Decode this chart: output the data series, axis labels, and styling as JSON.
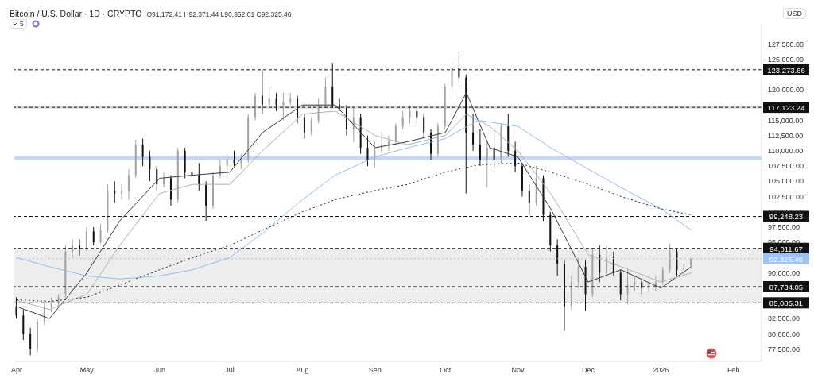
{
  "chart_data": {
    "type": "candlestick",
    "title": "Bitcoin / U.S. Dollar · 1D · CRYPTO",
    "subtitle": "O91,172.41 H92,371.44 L90,952.01 C92,325.46",
    "ylabel": "USD",
    "annotations": [
      "5"
    ],
    "xlim": [
      "2025-03-31",
      "2026-02-13"
    ],
    "xticks": [
      {
        "value": "2025-04-01",
        "label": "Apr"
      },
      {
        "value": "2025-05-01",
        "label": "May"
      },
      {
        "value": "2025-06-01",
        "label": "Jun"
      },
      {
        "value": "2025-07-01",
        "label": "Jul"
      },
      {
        "value": "2025-08-01",
        "label": "Aug"
      },
      {
        "value": "2025-09-01",
        "label": "Sep"
      },
      {
        "value": "2025-10-01",
        "label": "Oct"
      },
      {
        "value": "2025-11-01",
        "label": "Nov"
      },
      {
        "value": "2025-12-01",
        "label": "Dec"
      },
      {
        "value": "2026-01-01",
        "label": "2026"
      },
      {
        "value": "2026-02-01",
        "label": "Feb"
      }
    ],
    "ylim": [
      75500,
      130800
    ],
    "yticks": [
      {
        "value": 77500,
        "label": "77,500.00"
      },
      {
        "value": 80000,
        "label": "80,000.00"
      },
      {
        "value": 82500,
        "label": "82,500.00"
      },
      {
        "value": 90000,
        "label": "90,000.00"
      },
      {
        "value": 95000,
        "label": "95,000.00"
      },
      {
        "value": 97500,
        "label": "97,500.00"
      },
      {
        "value": 100000,
        "label": "100,000.00"
      },
      {
        "value": 102500,
        "label": "102,500.00"
      },
      {
        "value": 105000,
        "label": "105,000.00"
      },
      {
        "value": 107500,
        "label": "107,500.00"
      },
      {
        "value": 110000,
        "label": "110,000.00"
      },
      {
        "value": 112500,
        "label": "112,500.00"
      },
      {
        "value": 115000,
        "label": "115,000.00"
      },
      {
        "value": 120000,
        "label": "120,000.00"
      },
      {
        "value": 125000,
        "label": "125,000.00"
      },
      {
        "value": 127500,
        "label": "127,500.00"
      }
    ],
    "grid": false,
    "legend": false,
    "series": [
      {
        "colors": [
          "#131313",
          "#131313",
          "#131313",
          "#a3a3a3",
          "#a3a3a3",
          "#a3a3a3",
          "#a3a3a3",
          "#a3a3a3",
          "#a3a3a3",
          "#131313",
          "#a3a3a3",
          "#131313",
          "#a3a3a3",
          "#a3a3a3",
          "#131313",
          "#a3a3a3",
          "#a3a3a3",
          "#a3a3a3",
          "#131313",
          "#131313",
          "#131313",
          "#a3a3a3",
          "#131313",
          "#a3a3a3",
          "#131313",
          "#131313",
          "#131313",
          "#131313",
          "#a3a3a3",
          "#a3a3a3",
          "#a3a3a3",
          "#131313",
          "#a3a3a3",
          "#a3a3a3",
          "#a3a3a3",
          "#131313",
          "#a3a3a3",
          "#131313",
          "#a3a3a3",
          "#a3a3a3",
          "#131313",
          "#131313",
          "#a3a3a3",
          "#a3a3a3",
          "#a3a3a3",
          "#131313",
          "#131313",
          "#131313",
          "#a3a3a3",
          "#131313",
          "#131313",
          "#a3a3a3",
          "#a3a3a3",
          "#a3a3a3",
          "#a3a3a3",
          "#a3a3a3",
          "#a3a3a3",
          "#131313",
          "#131313",
          "#131313",
          "#a3a3a3",
          "#a3a3a3",
          "#a3a3a3",
          "#131313",
          "#131313",
          "#131313",
          "#131313",
          "#a3a3a3",
          "#131313",
          "#a3a3a3",
          "#131313",
          "#131313",
          "#131313",
          "#131313",
          "#a3a3a3",
          "#131313",
          "#131313",
          "#131313",
          "#131313",
          "#a3a3a3",
          "#a3a3a3",
          "#131313",
          "#a3a3a3",
          "#131313",
          "#a3a3a3",
          "#131313",
          "#131313",
          "#a3a3a3",
          "#a3a3a3",
          "#131313",
          "#a3a3a3",
          "#a3a3a3",
          "#a3a3a3",
          "#a3a3a3",
          "#131313",
          "#a3a3a3",
          "#a3a3a3"
        ],
        "x": [
          "2025-04-01",
          "2025-04-04",
          "2025-04-07",
          "2025-04-10",
          "2025-04-13",
          "2025-04-16",
          "2025-04-19",
          "2025-04-22",
          "2025-04-25",
          "2025-04-28",
          "2025-05-01",
          "2025-05-04",
          "2025-05-07",
          "2025-05-10",
          "2025-05-13",
          "2025-05-16",
          "2025-05-19",
          "2025-05-22",
          "2025-05-25",
          "2025-05-28",
          "2025-05-31",
          "2025-06-03",
          "2025-06-06",
          "2025-06-09",
          "2025-06-12",
          "2025-06-15",
          "2025-06-18",
          "2025-06-21",
          "2025-06-24",
          "2025-06-27",
          "2025-06-30",
          "2025-07-03",
          "2025-07-06",
          "2025-07-09",
          "2025-07-12",
          "2025-07-15",
          "2025-07-18",
          "2025-07-21",
          "2025-07-24",
          "2025-07-27",
          "2025-07-30",
          "2025-08-02",
          "2025-08-05",
          "2025-08-08",
          "2025-08-11",
          "2025-08-14",
          "2025-08-17",
          "2025-08-20",
          "2025-08-23",
          "2025-08-26",
          "2025-08-29",
          "2025-09-01",
          "2025-09-04",
          "2025-09-07",
          "2025-09-10",
          "2025-09-13",
          "2025-09-16",
          "2025-09-19",
          "2025-09-22",
          "2025-09-25",
          "2025-09-28",
          "2025-10-01",
          "2025-10-04",
          "2025-10-07",
          "2025-10-10",
          "2025-10-13",
          "2025-10-16",
          "2025-10-19",
          "2025-10-22",
          "2025-10-25",
          "2025-10-28",
          "2025-10-31",
          "2025-11-03",
          "2025-11-06",
          "2025-11-09",
          "2025-11-12",
          "2025-11-15",
          "2025-11-18",
          "2025-11-21",
          "2025-11-24",
          "2025-11-27",
          "2025-11-30",
          "2025-12-03",
          "2025-12-06",
          "2025-12-09",
          "2025-12-12",
          "2025-12-15",
          "2025-12-18",
          "2025-12-21",
          "2025-12-24",
          "2025-12-27",
          "2025-12-30",
          "2026-01-02",
          "2026-01-05",
          "2026-01-08",
          "2026-01-11",
          "2026-01-14"
        ],
        "ohlc": [
          [
            84500,
            86000,
            82500,
            83000
          ],
          [
            83000,
            84000,
            79000,
            80000
          ],
          [
            80000,
            81000,
            76500,
            77500
          ],
          [
            77500,
            82500,
            77000,
            82000
          ],
          [
            82000,
            85500,
            81500,
            84500
          ],
          [
            84500,
            86000,
            83500,
            85000
          ],
          [
            85000,
            86500,
            84500,
            86000
          ],
          [
            86500,
            94500,
            86000,
            93500
          ],
          [
            93500,
            95500,
            92500,
            94500
          ],
          [
            94500,
            95500,
            92800,
            94000
          ],
          [
            94000,
            97500,
            93500,
            96800
          ],
          [
            96800,
            97500,
            94500,
            95000
          ],
          [
            95000,
            98000,
            94800,
            97000
          ],
          [
            97000,
            104500,
            96500,
            103500
          ],
          [
            103500,
            105000,
            101500,
            103000
          ],
          [
            103000,
            104500,
            102000,
            103500
          ],
          [
            103500,
            107000,
            102000,
            106000
          ],
          [
            106000,
            111800,
            105500,
            111000
          ],
          [
            111000,
            112000,
            107500,
            109000
          ],
          [
            109000,
            110000,
            105000,
            107000
          ],
          [
            107000,
            107500,
            103500,
            104500
          ],
          [
            104500,
            106500,
            104000,
            105500
          ],
          [
            105500,
            106000,
            101000,
            102000
          ],
          [
            102000,
            110500,
            101500,
            110000
          ],
          [
            110000,
            110500,
            105500,
            106500
          ],
          [
            106500,
            108500,
            104500,
            106000
          ],
          [
            106000,
            108000,
            103500,
            104500
          ],
          [
            104500,
            105000,
            98500,
            101000
          ],
          [
            101000,
            106500,
            100500,
            106000
          ],
          [
            106000,
            108500,
            105500,
            107500
          ],
          [
            107500,
            109500,
            105500,
            108500
          ],
          [
            108500,
            110000,
            107500,
            108000
          ],
          [
            108000,
            109500,
            107000,
            108500
          ],
          [
            108500,
            116000,
            108000,
            115500
          ],
          [
            115500,
            119500,
            115000,
            119000
          ],
          [
            119000,
            123200,
            116000,
            117500
          ],
          [
            117500,
            120500,
            117000,
            118500
          ],
          [
            118500,
            119500,
            116500,
            117500
          ],
          [
            117500,
            119500,
            115000,
            118000
          ],
          [
            118000,
            119500,
            117500,
            118500
          ],
          [
            118500,
            119000,
            114500,
            115500
          ],
          [
            115500,
            116000,
            112000,
            113000
          ],
          [
            113000,
            115500,
            112500,
            115000
          ],
          [
            115000,
            118500,
            114500,
            117500
          ],
          [
            117500,
            122000,
            117000,
            120500
          ],
          [
            120500,
            124400,
            117000,
            117500
          ],
          [
            117500,
            118500,
            116500,
            117000
          ],
          [
            117000,
            117500,
            112500,
            113500
          ],
          [
            113500,
            117000,
            111500,
            115500
          ],
          [
            115500,
            116000,
            109500,
            110500
          ],
          [
            110500,
            112500,
            107500,
            108500
          ],
          [
            108500,
            111500,
            107200,
            110000
          ],
          [
            110000,
            113000,
            109500,
            111000
          ],
          [
            111000,
            112500,
            110000,
            111500
          ],
          [
            111500,
            114500,
            111000,
            114000
          ],
          [
            114000,
            116500,
            113500,
            115500
          ],
          [
            115500,
            117500,
            114500,
            116500
          ],
          [
            116500,
            117000,
            114500,
            115500
          ],
          [
            115500,
            116000,
            112000,
            113000
          ],
          [
            113000,
            113500,
            108500,
            109500
          ],
          [
            109500,
            114500,
            109000,
            114000
          ],
          [
            114000,
            121000,
            113500,
            120500
          ],
          [
            120500,
            124500,
            120000,
            123500
          ],
          [
            123500,
            126200,
            121000,
            122000
          ],
          [
            122000,
            122500,
            103000,
            113000
          ],
          [
            113000,
            116000,
            110000,
            111000
          ],
          [
            111000,
            113500,
            107500,
            108500
          ],
          [
            108500,
            111500,
            104000,
            110500
          ],
          [
            110500,
            113000,
            107000,
            108500
          ],
          [
            108500,
            114500,
            108000,
            114000
          ],
          [
            114000,
            116000,
            109000,
            110000
          ],
          [
            110000,
            111500,
            106500,
            107500
          ],
          [
            107500,
            108000,
            102500,
            103500
          ],
          [
            103500,
            104500,
            99500,
            101500
          ],
          [
            101500,
            107500,
            101000,
            105500
          ],
          [
            105500,
            106000,
            98500,
            99500
          ],
          [
            99500,
            100000,
            93500,
            94500
          ],
          [
            94500,
            95500,
            89500,
            91500
          ],
          [
            91500,
            92000,
            80500,
            84500
          ],
          [
            84500,
            89500,
            84000,
            88500
          ],
          [
            88500,
            92500,
            87500,
            91000
          ],
          [
            91000,
            92000,
            83800,
            86500
          ],
          [
            86500,
            94000,
            86000,
            93000
          ],
          [
            93000,
            94500,
            88500,
            90000
          ],
          [
            90000,
            94500,
            89500,
            92500
          ],
          [
            92500,
            93500,
            89500,
            90000
          ],
          [
            90000,
            90500,
            85500,
            86500
          ],
          [
            86500,
            90500,
            84800,
            88000
          ],
          [
            88000,
            89500,
            87000,
            88500
          ],
          [
            88500,
            89000,
            86500,
            87500
          ],
          [
            87500,
            88500,
            86800,
            87800
          ],
          [
            87800,
            89500,
            87000,
            88500
          ],
          [
            88500,
            91000,
            88000,
            90500
          ],
          [
            90500,
            94800,
            90000,
            93500
          ],
          [
            93500,
            94000,
            89500,
            90500
          ],
          [
            90500,
            91500,
            89700,
            90800
          ],
          [
            91172.41,
            92371.44,
            90952.01,
            92325.46
          ]
        ]
      },
      {
        "type": "line",
        "color": "#3a3a3a",
        "line_style": "solid",
        "x": [
          "2025-04-01",
          "2025-04-15",
          "2025-05-01",
          "2025-05-15",
          "2025-06-01",
          "2025-06-15",
          "2025-07-01",
          "2025-07-15",
          "2025-08-01",
          "2025-08-15",
          "2025-09-01",
          "2025-09-15",
          "2025-10-01",
          "2025-10-10",
          "2025-10-20",
          "2025-11-01",
          "2025-11-15",
          "2025-12-01",
          "2025-12-15",
          "2026-01-01",
          "2026-01-14"
        ],
        "values": [
          84500,
          82500,
          90000,
          98500,
          105500,
          106000,
          106500,
          113000,
          117500,
          117500,
          110500,
          111500,
          113000,
          119500,
          110500,
          109000,
          100500,
          88500,
          90500,
          87500,
          91000
        ]
      },
      {
        "type": "line",
        "color": "#b0b0b0",
        "line_style": "solid",
        "x": [
          "2025-04-01",
          "2025-04-15",
          "2025-05-01",
          "2025-05-15",
          "2025-06-01",
          "2025-06-15",
          "2025-07-01",
          "2025-07-15",
          "2025-08-01",
          "2025-08-15",
          "2025-09-01",
          "2025-09-15",
          "2025-10-01",
          "2025-10-10",
          "2025-10-20",
          "2025-11-01",
          "2025-11-15",
          "2025-12-01",
          "2025-12-15",
          "2026-01-01",
          "2026-01-14"
        ],
        "values": [
          85500,
          84000,
          86500,
          94500,
          103000,
          104500,
          104500,
          110000,
          116000,
          116500,
          112500,
          111000,
          112500,
          116000,
          114000,
          110000,
          103000,
          93000,
          91000,
          88500,
          90000
        ]
      },
      {
        "type": "line",
        "color": "#93bdf5",
        "line_style": "solid",
        "x": [
          "2025-04-01",
          "2025-04-15",
          "2025-05-01",
          "2025-05-15",
          "2025-06-01",
          "2025-06-15",
          "2025-07-01",
          "2025-07-15",
          "2025-08-01",
          "2025-08-15",
          "2025-09-01",
          "2025-09-15",
          "2025-10-01",
          "2025-10-15",
          "2025-11-01",
          "2025-11-15",
          "2025-12-01",
          "2025-12-15",
          "2026-01-01",
          "2026-01-14"
        ],
        "values": [
          92500,
          91000,
          89500,
          89000,
          89500,
          90500,
          92500,
          96500,
          102000,
          106000,
          109000,
          110500,
          112000,
          115000,
          114000,
          110500,
          107000,
          104000,
          100500,
          97000
        ]
      },
      {
        "type": "line",
        "color": "#222222",
        "line_style": "dotted",
        "x": [
          "2025-04-01",
          "2025-04-15",
          "2025-05-01",
          "2025-05-15",
          "2025-06-01",
          "2025-06-15",
          "2025-07-01",
          "2025-07-15",
          "2025-08-01",
          "2025-08-15",
          "2025-09-01",
          "2025-09-15",
          "2025-10-01",
          "2025-10-15",
          "2025-11-01",
          "2025-11-15",
          "2025-12-01",
          "2025-12-15",
          "2026-01-01",
          "2026-01-14"
        ],
        "values": [
          85600,
          85300,
          86000,
          88000,
          90500,
          92500,
          94500,
          97000,
          100000,
          102000,
          103500,
          104500,
          106500,
          107700,
          108000,
          106500,
          104500,
          102500,
          100500,
          99500
        ]
      }
    ],
    "ref_lines": [
      {
        "axis": "y",
        "value": 123273.66,
        "label": "123,273.66",
        "color": "#111111",
        "line_style": "dashed"
      },
      {
        "axis": "y",
        "value": 117123.24,
        "label": "117,123.24",
        "color": "#111111",
        "line_style": "dashed"
      },
      {
        "axis": "y",
        "value": 99248.23,
        "label": "99,248.23",
        "color": "#111111",
        "line_style": "dashed"
      },
      {
        "axis": "y",
        "value": 94011.67,
        "label": "94,011.67",
        "color": "#111111",
        "line_style": "dashed"
      },
      {
        "axis": "y",
        "value": 92325.46,
        "label": "92,325.46",
        "color": "#9cc2f7",
        "line_style": "dotted"
      },
      {
        "axis": "y",
        "value": 87734.05,
        "label": "87,734.05",
        "color": "#111111",
        "line_style": "dashed"
      },
      {
        "axis": "y",
        "value": 85085.31,
        "label": "85,085.31",
        "color": "#111111",
        "line_style": "dashed"
      }
    ],
    "bands": [
      {
        "axis": "y",
        "from": 108500,
        "to": 109100,
        "color": "#a9c8f6"
      },
      {
        "axis": "y",
        "from": 116900,
        "to": 117400,
        "color": "#cccccc"
      },
      {
        "axis": "y",
        "from": 85085.31,
        "to": 94011.67,
        "color": "#e6e6e6"
      }
    ]
  }
}
